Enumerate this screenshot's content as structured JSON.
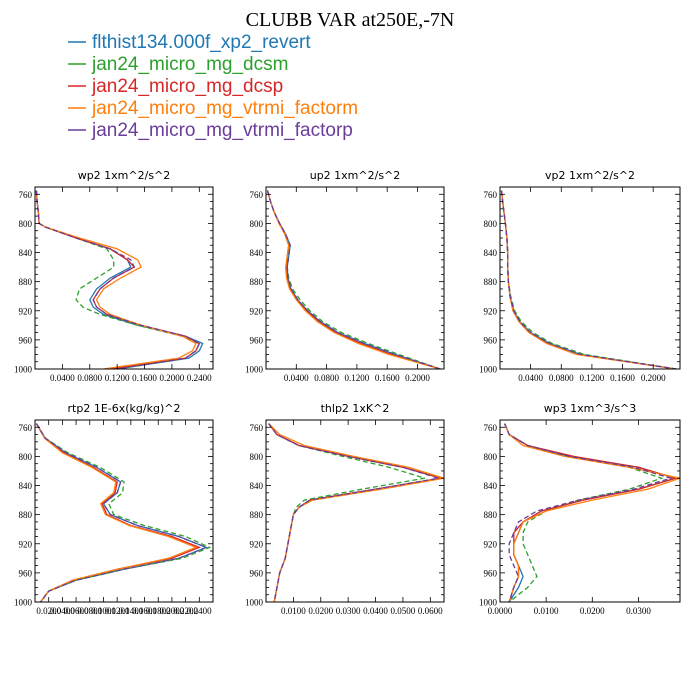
{
  "title": "CLUBB VAR at250E,-7N",
  "legend": [
    {
      "name": "flthist134.000f_xp2_revert",
      "color": "#1f77b4",
      "dash": "solid"
    },
    {
      "name": "jan24_micro_mg_dcsm",
      "color": "#2ca02c",
      "dash": "dashed"
    },
    {
      "name": "jan24_micro_mg_dcsp",
      "color": "#d62728",
      "dash": "solid"
    },
    {
      "name": "jan24_micro_mg_vtrmi_factorm",
      "color": "#ff7f0e",
      "dash": "solid"
    },
    {
      "name": "jan24_micro_mg_vtrmi_factorp",
      "color": "#6a3d9a",
      "dash": "dashed"
    }
  ],
  "chart_data": [
    {
      "type": "line",
      "title": "wp2  1xm^2/s^2",
      "y_axis": "pressure (inverted)",
      "ylim": [
        1000,
        750
      ],
      "yticks": [
        "760",
        "800",
        "840",
        "880",
        "920",
        "960",
        "1000"
      ],
      "xlim": [
        0,
        0.26
      ],
      "xticks": [
        "0.0400",
        "0.0800",
        "0.1200",
        "0.1600",
        "0.2000",
        "0.2400"
      ],
      "xtick_values": [
        0.04,
        0.08,
        0.12,
        0.16,
        0.2,
        0.24
      ],
      "levels": [
        755,
        770,
        785,
        800,
        805,
        820,
        835,
        850,
        860,
        875,
        890,
        905,
        915,
        925,
        940,
        955,
        965,
        975,
        985,
        1000
      ],
      "series": [
        {
          "name": "flthist134.000f_xp2_revert",
          "values": [
            0.002,
            0.003,
            0.005,
            0.006,
            0.015,
            0.06,
            0.11,
            0.135,
            0.14,
            0.11,
            0.09,
            0.08,
            0.085,
            0.1,
            0.15,
            0.22,
            0.245,
            0.24,
            0.225,
            0.12
          ]
        },
        {
          "name": "jan24_micro_mg_dcsm",
          "values": [
            0.002,
            0.003,
            0.005,
            0.006,
            0.015,
            0.06,
            0.105,
            0.115,
            0.115,
            0.09,
            0.065,
            0.06,
            0.07,
            0.095,
            0.15,
            0.215,
            0.24,
            0.235,
            0.22,
            0.12
          ]
        },
        {
          "name": "jan24_micro_mg_dcsp",
          "values": [
            0.002,
            0.003,
            0.005,
            0.006,
            0.015,
            0.06,
            0.11,
            0.135,
            0.145,
            0.115,
            0.095,
            0.085,
            0.09,
            0.105,
            0.155,
            0.22,
            0.24,
            0.235,
            0.22,
            0.11
          ]
        },
        {
          "name": "jan24_micro_mg_vtrmi_factorm",
          "values": [
            0.002,
            0.003,
            0.005,
            0.006,
            0.015,
            0.065,
            0.12,
            0.15,
            0.155,
            0.125,
            0.1,
            0.09,
            0.095,
            0.11,
            0.155,
            0.215,
            0.235,
            0.23,
            0.21,
            0.1
          ]
        },
        {
          "name": "jan24_micro_mg_vtrmi_factorp",
          "values": [
            0.002,
            0.003,
            0.005,
            0.006,
            0.015,
            0.06,
            0.11,
            0.14,
            0.145,
            0.115,
            0.095,
            0.085,
            0.09,
            0.105,
            0.155,
            0.22,
            0.24,
            0.235,
            0.22,
            0.12
          ]
        }
      ]
    },
    {
      "type": "line",
      "title": "up2  1xm^2/s^2",
      "y_axis": "pressure (inverted)",
      "ylim": [
        1000,
        750
      ],
      "yticks": [
        "760",
        "800",
        "840",
        "880",
        "920",
        "960",
        "1000"
      ],
      "xlim": [
        0,
        0.235
      ],
      "xticks": [
        "0.0400",
        "0.0800",
        "0.1200",
        "0.1600",
        "0.2000"
      ],
      "xtick_values": [
        0.04,
        0.08,
        0.12,
        0.16,
        0.2
      ],
      "levels": [
        755,
        770,
        785,
        800,
        815,
        830,
        845,
        860,
        875,
        890,
        905,
        920,
        935,
        950,
        965,
        980,
        1000
      ],
      "series": [
        {
          "name": "flthist134.000f_xp2_revert",
          "values": [
            0.002,
            0.006,
            0.011,
            0.018,
            0.026,
            0.032,
            0.03,
            0.028,
            0.029,
            0.033,
            0.042,
            0.055,
            0.072,
            0.095,
            0.13,
            0.17,
            0.23
          ]
        },
        {
          "name": "jan24_micro_mg_dcsm",
          "values": [
            0.002,
            0.006,
            0.011,
            0.018,
            0.026,
            0.031,
            0.03,
            0.028,
            0.03,
            0.035,
            0.045,
            0.058,
            0.075,
            0.1,
            0.135,
            0.175,
            0.23
          ]
        },
        {
          "name": "jan24_micro_mg_dcsp",
          "values": [
            0.002,
            0.006,
            0.011,
            0.018,
            0.025,
            0.03,
            0.028,
            0.027,
            0.028,
            0.032,
            0.041,
            0.054,
            0.07,
            0.092,
            0.125,
            0.165,
            0.23
          ]
        },
        {
          "name": "jan24_micro_mg_vtrmi_factorm",
          "values": [
            0.002,
            0.006,
            0.011,
            0.017,
            0.025,
            0.03,
            0.028,
            0.026,
            0.027,
            0.031,
            0.04,
            0.052,
            0.068,
            0.09,
            0.122,
            0.162,
            0.23
          ]
        },
        {
          "name": "jan24_micro_mg_vtrmi_factorp",
          "values": [
            0.002,
            0.006,
            0.011,
            0.018,
            0.026,
            0.032,
            0.03,
            0.028,
            0.029,
            0.033,
            0.042,
            0.055,
            0.072,
            0.095,
            0.13,
            0.17,
            0.23
          ]
        }
      ]
    },
    {
      "type": "line",
      "title": "vp2  1xm^2/s^2",
      "y_axis": "pressure (inverted)",
      "ylim": [
        1000,
        750
      ],
      "yticks": [
        "760",
        "800",
        "840",
        "880",
        "920",
        "960",
        "1000"
      ],
      "xlim": [
        0,
        0.235
      ],
      "xticks": [
        "0.0400",
        "0.0800",
        "0.1200",
        "0.1600",
        "0.2000"
      ],
      "xtick_values": [
        0.04,
        0.08,
        0.12,
        0.16,
        0.2
      ],
      "levels": [
        755,
        775,
        800,
        820,
        840,
        860,
        880,
        900,
        920,
        935,
        950,
        965,
        980,
        1000
      ],
      "series": [
        {
          "name": "flthist134.000f_xp2_revert",
          "values": [
            0.002,
            0.004,
            0.007,
            0.009,
            0.01,
            0.01,
            0.011,
            0.013,
            0.018,
            0.026,
            0.04,
            0.065,
            0.105,
            0.23
          ]
        },
        {
          "name": "jan24_micro_mg_dcsm",
          "values": [
            0.002,
            0.004,
            0.007,
            0.009,
            0.01,
            0.01,
            0.011,
            0.014,
            0.019,
            0.028,
            0.043,
            0.068,
            0.11,
            0.23
          ]
        },
        {
          "name": "jan24_micro_mg_dcsp",
          "values": [
            0.002,
            0.004,
            0.007,
            0.009,
            0.01,
            0.01,
            0.011,
            0.013,
            0.017,
            0.025,
            0.038,
            0.062,
            0.1,
            0.23
          ]
        },
        {
          "name": "jan24_micro_mg_vtrmi_factorm",
          "values": [
            0.002,
            0.004,
            0.007,
            0.009,
            0.01,
            0.01,
            0.011,
            0.013,
            0.017,
            0.025,
            0.038,
            0.061,
            0.1,
            0.23
          ]
        },
        {
          "name": "jan24_micro_mg_vtrmi_factorp",
          "values": [
            0.002,
            0.004,
            0.007,
            0.009,
            0.01,
            0.01,
            0.011,
            0.013,
            0.018,
            0.026,
            0.04,
            0.065,
            0.105,
            0.23
          ]
        }
      ]
    },
    {
      "type": "line",
      "title": "rtp2  1E-6x(kg/kg)^2",
      "y_axis": "pressure (inverted)",
      "ylim": [
        1000,
        750
      ],
      "yticks": [
        "760",
        "800",
        "840",
        "880",
        "920",
        "960",
        "1000"
      ],
      "xlim": [
        0,
        0.26
      ],
      "xticks": [
        "0.0200",
        "0.0400",
        "0.0600",
        "0.0800",
        "0.1000",
        "0.1200",
        "0.1400",
        "0.1600",
        "0.1800",
        "0.2000",
        "0.2200",
        "0.2400"
      ],
      "xtick_values": [
        0.02,
        0.04,
        0.06,
        0.08,
        0.1,
        0.12,
        0.14,
        0.16,
        0.18,
        0.2,
        0.22,
        0.24
      ],
      "levels": [
        755,
        775,
        795,
        815,
        835,
        850,
        865,
        880,
        895,
        910,
        925,
        940,
        955,
        970,
        985,
        1000
      ],
      "series": [
        {
          "name": "flthist134.000f_xp2_revert",
          "values": [
            0.002,
            0.015,
            0.045,
            0.09,
            0.125,
            0.12,
            0.1,
            0.11,
            0.15,
            0.21,
            0.25,
            0.21,
            0.13,
            0.06,
            0.02,
            0.008
          ]
        },
        {
          "name": "jan24_micro_mg_dcsm",
          "values": [
            0.002,
            0.015,
            0.048,
            0.095,
            0.13,
            0.128,
            0.108,
            0.115,
            0.16,
            0.22,
            0.255,
            0.215,
            0.13,
            0.06,
            0.02,
            0.008
          ]
        },
        {
          "name": "jan24_micro_mg_dcsp",
          "values": [
            0.002,
            0.014,
            0.042,
            0.085,
            0.12,
            0.117,
            0.098,
            0.105,
            0.14,
            0.2,
            0.24,
            0.2,
            0.12,
            0.055,
            0.02,
            0.008
          ]
        },
        {
          "name": "jan24_micro_mg_vtrmi_factorm",
          "values": [
            0.002,
            0.014,
            0.04,
            0.083,
            0.118,
            0.115,
            0.096,
            0.103,
            0.138,
            0.195,
            0.235,
            0.195,
            0.12,
            0.055,
            0.02,
            0.008
          ]
        },
        {
          "name": "jan24_micro_mg_vtrmi_factorp",
          "values": [
            0.002,
            0.015,
            0.045,
            0.09,
            0.125,
            0.12,
            0.1,
            0.11,
            0.15,
            0.21,
            0.25,
            0.21,
            0.13,
            0.06,
            0.02,
            0.008
          ]
        }
      ]
    },
    {
      "type": "line",
      "title": "thlp2  1xK^2",
      "y_axis": "pressure (inverted)",
      "ylim": [
        1000,
        750
      ],
      "yticks": [
        "760",
        "800",
        "840",
        "880",
        "920",
        "960",
        "1000"
      ],
      "xlim": [
        0,
        0.065
      ],
      "xticks": [
        "0.0100",
        "0.0200",
        "0.0300",
        "0.0400",
        "0.0500",
        "0.0600"
      ],
      "xtick_values": [
        0.01,
        0.02,
        0.03,
        0.04,
        0.05,
        0.06
      ],
      "levels": [
        755,
        770,
        785,
        800,
        815,
        830,
        845,
        860,
        870,
        880,
        900,
        920,
        940,
        960,
        980,
        1000
      ],
      "series": [
        {
          "name": "flthist134.000f_xp2_revert",
          "values": [
            0.001,
            0.004,
            0.012,
            0.03,
            0.05,
            0.064,
            0.04,
            0.016,
            0.012,
            0.01,
            0.009,
            0.008,
            0.007,
            0.005,
            0.004,
            0.003
          ]
        },
        {
          "name": "jan24_micro_mg_dcsm",
          "values": [
            0.001,
            0.004,
            0.012,
            0.028,
            0.045,
            0.058,
            0.035,
            0.014,
            0.011,
            0.01,
            0.009,
            0.008,
            0.007,
            0.005,
            0.004,
            0.003
          ]
        },
        {
          "name": "jan24_micro_mg_dcsp",
          "values": [
            0.001,
            0.004,
            0.012,
            0.03,
            0.05,
            0.064,
            0.04,
            0.016,
            0.012,
            0.01,
            0.009,
            0.008,
            0.007,
            0.005,
            0.004,
            0.003
          ]
        },
        {
          "name": "jan24_micro_mg_vtrmi_factorm",
          "values": [
            0.001,
            0.005,
            0.014,
            0.032,
            0.052,
            0.065,
            0.042,
            0.017,
            0.012,
            0.01,
            0.009,
            0.008,
            0.007,
            0.005,
            0.004,
            0.003
          ]
        },
        {
          "name": "jan24_micro_mg_vtrmi_factorp",
          "values": [
            0.001,
            0.004,
            0.012,
            0.03,
            0.05,
            0.063,
            0.04,
            0.016,
            0.012,
            0.01,
            0.009,
            0.008,
            0.007,
            0.005,
            0.004,
            0.003
          ]
        }
      ]
    },
    {
      "type": "line",
      "title": "wp3  1xm^3/s^3",
      "y_axis": "pressure (inverted)",
      "ylim": [
        1000,
        750
      ],
      "yticks": [
        "760",
        "800",
        "840",
        "880",
        "920",
        "960",
        "1000"
      ],
      "xlim": [
        0,
        0.039
      ],
      "xticks": [
        "0.0000",
        "0.0100",
        "0.0200",
        "0.0300"
      ],
      "xtick_values": [
        0.0,
        0.01,
        0.02,
        0.03
      ],
      "levels": [
        755,
        770,
        785,
        800,
        815,
        830,
        845,
        860,
        875,
        890,
        905,
        920,
        935,
        950,
        965,
        980,
        1000
      ],
      "series": [
        {
          "name": "flthist134.000f_xp2_revert",
          "values": [
            0.001,
            0.002,
            0.006,
            0.015,
            0.03,
            0.038,
            0.03,
            0.018,
            0.009,
            0.005,
            0.004,
            0.003,
            0.003,
            0.004,
            0.005,
            0.004,
            0.002
          ]
        },
        {
          "name": "jan24_micro_mg_dcsm",
          "values": [
            0.001,
            0.002,
            0.006,
            0.015,
            0.028,
            0.035,
            0.028,
            0.017,
            0.01,
            0.006,
            0.005,
            0.005,
            0.006,
            0.007,
            0.008,
            0.006,
            0.002
          ]
        },
        {
          "name": "jan24_micro_mg_dcsp",
          "values": [
            0.001,
            0.002,
            0.006,
            0.016,
            0.03,
            0.038,
            0.03,
            0.018,
            0.009,
            0.005,
            0.003,
            0.003,
            0.003,
            0.004,
            0.004,
            0.003,
            0.002
          ]
        },
        {
          "name": "jan24_micro_mg_vtrmi_factorm",
          "values": [
            0.001,
            0.002,
            0.005,
            0.014,
            0.028,
            0.039,
            0.032,
            0.02,
            0.01,
            0.005,
            0.004,
            0.003,
            0.003,
            0.004,
            0.004,
            0.003,
            0.002
          ]
        },
        {
          "name": "jan24_micro_mg_vtrmi_factorp",
          "values": [
            0.001,
            0.002,
            0.006,
            0.015,
            0.029,
            0.037,
            0.029,
            0.017,
            0.008,
            0.004,
            0.003,
            0.002,
            0.002,
            0.003,
            0.004,
            0.003,
            0.002
          ]
        }
      ]
    }
  ]
}
